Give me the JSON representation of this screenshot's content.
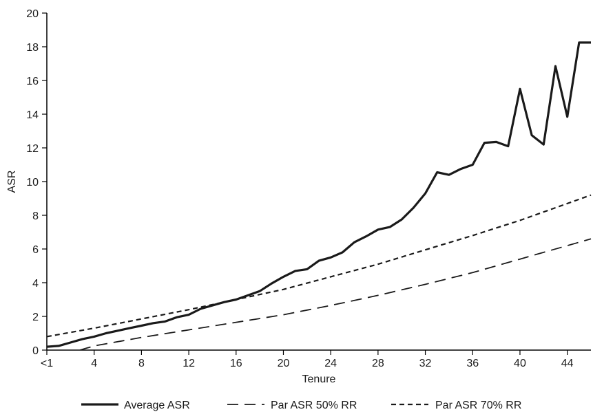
{
  "chart_data": {
    "type": "line",
    "xlabel": "Tenure",
    "ylabel": "ASR",
    "xlim": [
      0,
      46
    ],
    "ylim": [
      0,
      20
    ],
    "x_ticks": [
      {
        "value": 0,
        "label": "<1"
      },
      {
        "value": 4,
        "label": "4"
      },
      {
        "value": 8,
        "label": "8"
      },
      {
        "value": 12,
        "label": "12"
      },
      {
        "value": 16,
        "label": "16"
      },
      {
        "value": 20,
        "label": "20"
      },
      {
        "value": 24,
        "label": "24"
      },
      {
        "value": 28,
        "label": "28"
      },
      {
        "value": 32,
        "label": "32"
      },
      {
        "value": 36,
        "label": "36"
      },
      {
        "value": 40,
        "label": "40"
      },
      {
        "value": 44,
        "label": "44"
      }
    ],
    "y_ticks": [
      0,
      2,
      4,
      6,
      8,
      10,
      12,
      14,
      16,
      18,
      20
    ],
    "grid": false,
    "legend_position": "bottom",
    "series": [
      {
        "name": "Average ASR",
        "style": "solid",
        "x": [
          0,
          1,
          2,
          3,
          4,
          5,
          6,
          7,
          8,
          9,
          10,
          11,
          12,
          13,
          14,
          15,
          16,
          17,
          18,
          19,
          20,
          21,
          22,
          23,
          24,
          25,
          26,
          27,
          28,
          29,
          30,
          31,
          32,
          33,
          34,
          35,
          36,
          37,
          38,
          39,
          40,
          41,
          42,
          43,
          44,
          45,
          46
        ],
        "values": [
          0.2,
          0.25,
          0.45,
          0.65,
          0.8,
          1.0,
          1.15,
          1.3,
          1.45,
          1.6,
          1.7,
          1.95,
          2.1,
          2.45,
          2.65,
          2.85,
          3.0,
          3.25,
          3.5,
          3.95,
          4.35,
          4.7,
          4.8,
          5.3,
          5.5,
          5.8,
          6.4,
          6.75,
          7.15,
          7.3,
          7.75,
          8.45,
          9.3,
          10.55,
          10.4,
          10.75,
          11.0,
          12.3,
          12.35,
          12.1,
          15.5,
          12.75,
          12.2,
          16.85,
          13.85,
          18.25,
          18.25
        ]
      },
      {
        "name": "Par ASR 50% RR",
        "style": "long-dash",
        "x": [
          2.8,
          4,
          8,
          12,
          16,
          20,
          24,
          28,
          32,
          36,
          40,
          44,
          46
        ],
        "values": [
          0.0,
          0.25,
          0.75,
          1.2,
          1.65,
          2.1,
          2.65,
          3.25,
          3.9,
          4.6,
          5.4,
          6.2,
          6.6
        ]
      },
      {
        "name": "Par ASR 70% RR",
        "style": "short-dash",
        "x": [
          0,
          4,
          8,
          12,
          16,
          20,
          24,
          28,
          32,
          36,
          40,
          44,
          46
        ],
        "values": [
          0.8,
          1.3,
          1.85,
          2.4,
          3.0,
          3.6,
          4.35,
          5.1,
          5.95,
          6.8,
          7.7,
          8.7,
          9.2
        ]
      }
    ]
  }
}
